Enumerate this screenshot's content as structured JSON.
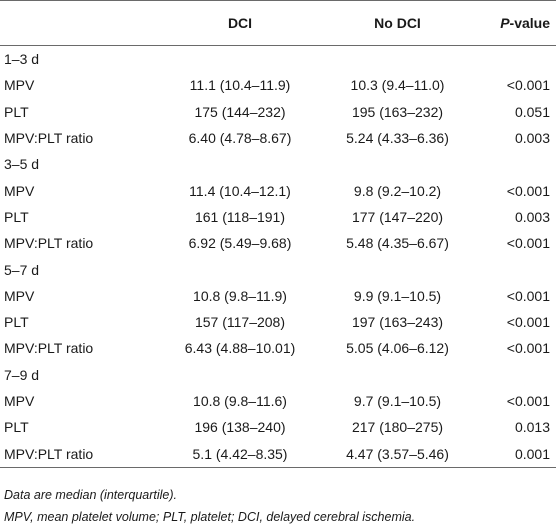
{
  "table": {
    "headers": {
      "label": "",
      "dci": "DCI",
      "no_dci": "No DCI",
      "p_italic": "P",
      "p_rest": "-value"
    },
    "groups": [
      {
        "label": "1–3 d",
        "rows": [
          {
            "name": "MPV",
            "dci": "11.1 (10.4–11.9)",
            "no_dci": "10.3 (9.4–11.0)",
            "p": "<0.001"
          },
          {
            "name": "PLT",
            "dci": "175 (144–232)",
            "no_dci": "195 (163–232)",
            "p": "0.051"
          },
          {
            "name": "MPV:PLT ratio",
            "dci": "6.40 (4.78–8.67)",
            "no_dci": "5.24 (4.33–6.36)",
            "p": "0.003"
          }
        ]
      },
      {
        "label": "3–5 d",
        "rows": [
          {
            "name": "MPV",
            "dci": "11.4 (10.4–12.1)",
            "no_dci": "9.8 (9.2–10.2)",
            "p": "<0.001"
          },
          {
            "name": "PLT",
            "dci": "161 (118–191)",
            "no_dci": "177 (147–220)",
            "p": "0.003"
          },
          {
            "name": "MPV:PLT ratio",
            "dci": "6.92 (5.49–9.68)",
            "no_dci": "5.48 (4.35–6.67)",
            "p": "<0.001"
          }
        ]
      },
      {
        "label": "5–7 d",
        "rows": [
          {
            "name": "MPV",
            "dci": "10.8 (9.8–11.9)",
            "no_dci": "9.9 (9.1–10.5)",
            "p": "<0.001"
          },
          {
            "name": "PLT",
            "dci": "157 (117–208)",
            "no_dci": "197 (163–243)",
            "p": "<0.001"
          },
          {
            "name": "MPV:PLT ratio",
            "dci": "6.43 (4.88–10.01)",
            "no_dci": "5.05 (4.06–6.12)",
            "p": "<0.001"
          }
        ]
      },
      {
        "label": "7–9 d",
        "rows": [
          {
            "name": "MPV",
            "dci": "10.8 (9.8–11.6)",
            "no_dci": "9.7 (9.1–10.5)",
            "p": "<0.001"
          },
          {
            "name": "PLT",
            "dci": "196 (138–240)",
            "no_dci": "217 (180–275)",
            "p": "0.013"
          },
          {
            "name": "MPV:PLT ratio",
            "dci": "5.1 (4.42–8.35)",
            "no_dci": "4.47 (3.57–5.46)",
            "p": "0.001"
          }
        ]
      }
    ]
  },
  "footnotes": [
    "Data are median (interquartile).",
    "MPV, mean platelet volume; PLT, platelet; DCI, delayed cerebral ischemia."
  ]
}
